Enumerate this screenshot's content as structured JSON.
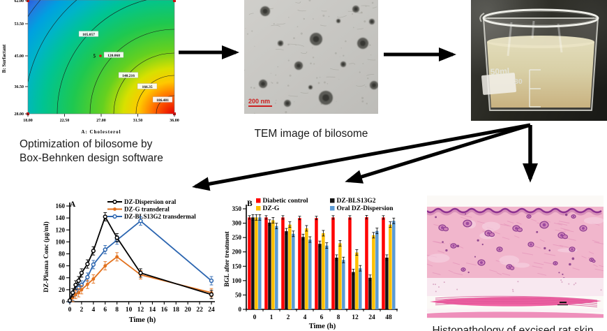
{
  "figure": {
    "captions": {
      "optimization_line1": "Optimization of bilosome by",
      "optimization_line2": "Box-Behnken design software",
      "tem": "TEM image of bilosome",
      "histology": "Histopathology of excised rat skin"
    }
  },
  "contour_plot": {
    "xlabel": "A: Cholesterol",
    "ylabel": "B: Surfactant",
    "x_ticks": [
      "18.00",
      "22.50",
      "27.00",
      "31.50",
      "36.00"
    ],
    "y_ticks": [
      "28.00",
      "36.50",
      "45.00",
      "53.50",
      "62.00"
    ],
    "contour_labels": [
      "105.057",
      "120.068",
      "140.216",
      "166.35",
      "186.481"
    ],
    "design_point_label": "5"
  },
  "tem": {
    "scale_label": "200 nm"
  },
  "beaker": {
    "markings": [
      "50ml",
      "30"
    ]
  },
  "chart_data": [
    {
      "type": "line",
      "panel_label": "A",
      "xlabel": "Time (h)",
      "ylabel": "DZ-Plasma Conc (µg/ml)",
      "xlim": [
        0,
        24
      ],
      "x_tick_step": 2,
      "ylim": [
        0,
        160
      ],
      "y_tick_step": 20,
      "x": [
        0,
        0.5,
        1,
        1.5,
        2,
        3,
        4,
        6,
        8,
        12,
        24
      ],
      "series": [
        {
          "name": "DZ-Dispersion oral",
          "color": "#000000",
          "marker": "open-circle",
          "y": [
            2,
            15,
            28,
            35,
            48,
            63,
            85,
            142,
            107,
            48,
            12
          ]
        },
        {
          "name": "DZ-G transderal",
          "color": "#E2711D",
          "marker": "filled-circle",
          "y": [
            1,
            7,
            12,
            15,
            20,
            29,
            38,
            60,
            75,
            45,
            15
          ]
        },
        {
          "name": "DZ-BLS13G2 transdermal",
          "color": "#2B65B0",
          "marker": "open-circle",
          "y": [
            1,
            9,
            17,
            23,
            28,
            41,
            62,
            87,
            103,
            135,
            35
          ]
        }
      ],
      "error_bar_abs": 7,
      "legend_position": "top-inside"
    },
    {
      "type": "bar",
      "panel_label": "B",
      "xlabel": "Time (h)",
      "ylabel": "BGL after treatment",
      "categories": [
        "0",
        "1",
        "2",
        "4",
        "6",
        "8",
        "12",
        "24",
        "48"
      ],
      "ylim": [
        0,
        350
      ],
      "y_tick_step": 50,
      "series": [
        {
          "name": "Diabetic control",
          "color": "#FF0000",
          "values": [
            320,
            320,
            320,
            318,
            318,
            320,
            320,
            321,
            320
          ]
        },
        {
          "name": "DZ-BLS13G2",
          "color": "#141414",
          "values": [
            320,
            302,
            272,
            252,
            228,
            180,
            130,
            110,
            180
          ]
        },
        {
          "name": "DZ-G",
          "color": "#FFC000",
          "values": [
            320,
            310,
            295,
            282,
            265,
            230,
            198,
            258,
            295
          ]
        },
        {
          "name": "Oral DZ-Dispersion",
          "color": "#5B9BD5",
          "values": [
            320,
            290,
            263,
            243,
            222,
            172,
            143,
            273,
            308
          ]
        }
      ],
      "error_bar_abs": 8,
      "legend_position": "top-inside"
    }
  ]
}
